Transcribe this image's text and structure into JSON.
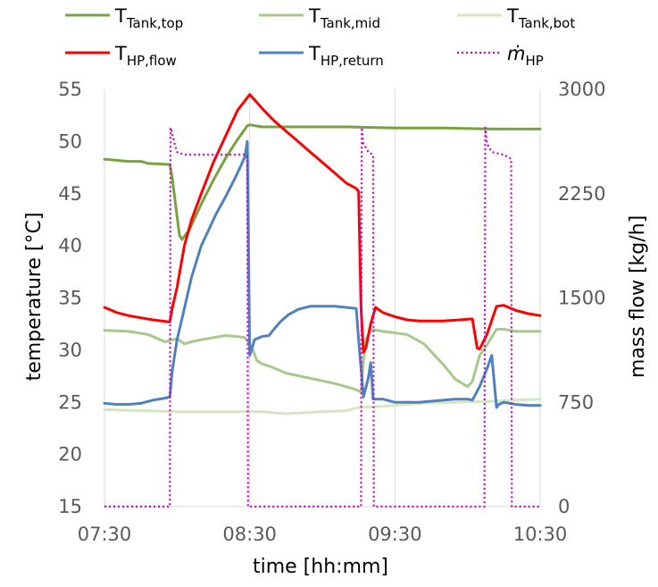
{
  "chart_data": {
    "type": "line",
    "x_unit": "minutes since 07:30",
    "xlabel": "time [hh:mm]",
    "ylabel_left": "temperature [°C]",
    "ylabel_right": "mass flow [kg/h]",
    "ylim_left": [
      15,
      55
    ],
    "ylim_right": [
      0,
      3000
    ],
    "xlim": [
      0,
      180
    ],
    "x_ticks": [
      {
        "value": 0,
        "label": "07:30"
      },
      {
        "value": 60,
        "label": "08:30"
      },
      {
        "value": 120,
        "label": "09:30"
      },
      {
        "value": 180,
        "label": "10:30"
      }
    ],
    "y_ticks_left": [
      {
        "value": 15,
        "label": "15"
      },
      {
        "value": 20,
        "label": "20"
      },
      {
        "value": 25,
        "label": "25"
      },
      {
        "value": 30,
        "label": "30"
      },
      {
        "value": 35,
        "label": "35"
      },
      {
        "value": 40,
        "label": "40"
      },
      {
        "value": 45,
        "label": "45"
      },
      {
        "value": 50,
        "label": "50"
      },
      {
        "value": 55,
        "label": "55"
      }
    ],
    "y_ticks_right": [
      {
        "value": 0,
        "label": "0"
      },
      {
        "value": 750,
        "label": "750"
      },
      {
        "value": 1500,
        "label": "1500"
      },
      {
        "value": 2250,
        "label": "2250"
      },
      {
        "value": 3000,
        "label": "3000"
      }
    ],
    "grid": "vertical",
    "legend_position": "top",
    "series": [
      {
        "name_main": "T",
        "name_sub": "Tank,top",
        "color": "#77a33f",
        "width": 3,
        "dash": "",
        "axis": "left",
        "points": [
          [
            0,
            48.3
          ],
          [
            10,
            48.1
          ],
          [
            15,
            48.1
          ],
          [
            18,
            47.9
          ],
          [
            27,
            47.8
          ],
          [
            28,
            46.5
          ],
          [
            31,
            41
          ],
          [
            32,
            40.6
          ],
          [
            35,
            41.5
          ],
          [
            40,
            44
          ],
          [
            45,
            46.3
          ],
          [
            50,
            48.4
          ],
          [
            55,
            50.2
          ],
          [
            59,
            51.5
          ],
          [
            60,
            51.6
          ],
          [
            65,
            51.4
          ],
          [
            80,
            51.4
          ],
          [
            100,
            51.4
          ],
          [
            120,
            51.3
          ],
          [
            140,
            51.3
          ],
          [
            160,
            51.2
          ],
          [
            170,
            51.2
          ],
          [
            180,
            51.2
          ]
        ]
      },
      {
        "name_main": "T",
        "name_sub": "Tank,mid",
        "color": "#a9c98a",
        "width": 3,
        "dash": "",
        "axis": "left",
        "points": [
          [
            0,
            31.9
          ],
          [
            10,
            31.8
          ],
          [
            18,
            31.5
          ],
          [
            25,
            30.8
          ],
          [
            30,
            31.1
          ],
          [
            33,
            30.6
          ],
          [
            36,
            30.8
          ],
          [
            40,
            31
          ],
          [
            45,
            31.2
          ],
          [
            50,
            31.4
          ],
          [
            55,
            31.3
          ],
          [
            58,
            31.2
          ],
          [
            61,
            30.2
          ],
          [
            63,
            29
          ],
          [
            65,
            28.7
          ],
          [
            70,
            28.3
          ],
          [
            75,
            27.8
          ],
          [
            85,
            27.3
          ],
          [
            95,
            26.8
          ],
          [
            103,
            26.3
          ],
          [
            106,
            26
          ],
          [
            107,
            29
          ],
          [
            108,
            31
          ],
          [
            110,
            32
          ],
          [
            115,
            31.8
          ],
          [
            125,
            31.5
          ],
          [
            132,
            30.6
          ],
          [
            140,
            28.6
          ],
          [
            145,
            27.2
          ],
          [
            150,
            26.5
          ],
          [
            152,
            27
          ],
          [
            155,
            29.5
          ],
          [
            158,
            30.5
          ],
          [
            162,
            32
          ],
          [
            165,
            32
          ],
          [
            170,
            31.8
          ],
          [
            180,
            31.8
          ]
        ]
      },
      {
        "name_main": "T",
        "name_sub": "Tank,bot",
        "color": "#d5e6c1",
        "width": 3,
        "dash": "",
        "axis": "left",
        "points": [
          [
            0,
            24.3
          ],
          [
            15,
            24.2
          ],
          [
            30,
            24.1
          ],
          [
            45,
            24.1
          ],
          [
            60,
            24.1
          ],
          [
            65,
            24.1
          ],
          [
            75,
            23.9
          ],
          [
            90,
            24.1
          ],
          [
            100,
            24.2
          ],
          [
            105,
            24.5
          ],
          [
            115,
            24.6
          ],
          [
            130,
            24.9
          ],
          [
            145,
            25
          ],
          [
            160,
            25.1
          ],
          [
            170,
            25.2
          ],
          [
            180,
            25.3
          ]
        ]
      },
      {
        "name_main": "T",
        "name_sub": "HP,flow",
        "color": "#ff0000",
        "width": 3,
        "dash": "",
        "axis": "left",
        "points": [
          [
            0,
            34.1
          ],
          [
            5,
            33.6
          ],
          [
            10,
            33.3
          ],
          [
            15,
            33.1
          ],
          [
            20,
            32.9
          ],
          [
            27,
            32.7
          ],
          [
            28,
            34
          ],
          [
            30,
            36
          ],
          [
            33,
            40
          ],
          [
            36,
            42.5
          ],
          [
            40,
            45
          ],
          [
            45,
            48
          ],
          [
            50,
            50.5
          ],
          [
            55,
            53
          ],
          [
            59,
            54.2
          ],
          [
            60,
            54.5
          ],
          [
            62,
            54
          ],
          [
            65,
            53.2
          ],
          [
            70,
            52
          ],
          [
            75,
            51
          ],
          [
            80,
            50
          ],
          [
            85,
            49
          ],
          [
            90,
            48
          ],
          [
            95,
            47
          ],
          [
            100,
            46
          ],
          [
            104,
            45.5
          ],
          [
            105,
            45.2
          ],
          [
            106,
            34
          ],
          [
            107,
            29.8
          ],
          [
            108,
            30.2
          ],
          [
            110,
            32.5
          ],
          [
            112,
            34.1
          ],
          [
            115,
            33.6
          ],
          [
            120,
            33.2
          ],
          [
            125,
            32.9
          ],
          [
            130,
            32.8
          ],
          [
            140,
            32.8
          ],
          [
            147,
            32.9
          ],
          [
            152,
            33
          ],
          [
            154,
            30.2
          ],
          [
            155,
            30.1
          ],
          [
            158,
            31.5
          ],
          [
            162,
            34.2
          ],
          [
            165,
            34.3
          ],
          [
            170,
            33.8
          ],
          [
            175,
            33.5
          ],
          [
            180,
            33.3
          ]
        ]
      },
      {
        "name_main": "T",
        "name_sub": "HP,return",
        "color": "#4f81bd",
        "width": 3,
        "dash": "",
        "axis": "left",
        "points": [
          [
            0,
            24.9
          ],
          [
            5,
            24.8
          ],
          [
            10,
            24.8
          ],
          [
            15,
            24.9
          ],
          [
            20,
            25.2
          ],
          [
            25,
            25.4
          ],
          [
            27,
            25.5
          ],
          [
            28,
            28
          ],
          [
            30,
            31
          ],
          [
            32,
            33
          ],
          [
            34,
            35
          ],
          [
            36,
            37
          ],
          [
            38,
            38.5
          ],
          [
            40,
            40
          ],
          [
            43,
            41.5
          ],
          [
            46,
            43
          ],
          [
            50,
            44.7
          ],
          [
            54,
            46.5
          ],
          [
            58,
            48.5
          ],
          [
            59,
            50
          ],
          [
            60,
            29.5
          ],
          [
            62,
            31
          ],
          [
            65,
            31.3
          ],
          [
            68,
            31.4
          ],
          [
            70,
            32
          ],
          [
            73,
            32.8
          ],
          [
            76,
            33.4
          ],
          [
            80,
            33.9
          ],
          [
            85,
            34.2
          ],
          [
            90,
            34.2
          ],
          [
            95,
            34.2
          ],
          [
            104,
            34
          ],
          [
            105,
            31
          ],
          [
            107,
            25.5
          ],
          [
            109,
            27.3
          ],
          [
            110,
            28.8
          ],
          [
            111,
            25.3
          ],
          [
            115,
            25.3
          ],
          [
            120,
            25
          ],
          [
            130,
            25
          ],
          [
            140,
            25.2
          ],
          [
            145,
            25.3
          ],
          [
            150,
            25.3
          ],
          [
            152,
            25.2
          ],
          [
            155,
            26.5
          ],
          [
            158,
            28.2
          ],
          [
            160,
            29.5
          ],
          [
            162,
            24.5
          ],
          [
            163,
            24.8
          ],
          [
            165,
            25
          ],
          [
            170,
            24.8
          ],
          [
            175,
            24.7
          ],
          [
            180,
            24.7
          ]
        ]
      },
      {
        "name_main": "ṁ",
        "name_sub": "HP",
        "color": "#cc00cc",
        "width": 2.2,
        "dash": "2,3",
        "axis": "right",
        "points": [
          [
            0,
            0
          ],
          [
            27,
            0
          ],
          [
            27.3,
            2725
          ],
          [
            29,
            2610
          ],
          [
            30,
            2550
          ],
          [
            33,
            2530
          ],
          [
            40,
            2530
          ],
          [
            50,
            2530
          ],
          [
            58,
            2530
          ],
          [
            59,
            2520
          ],
          [
            59.3,
            0
          ],
          [
            106,
            0
          ],
          [
            106.3,
            2725
          ],
          [
            107,
            2610
          ],
          [
            109,
            2550
          ],
          [
            111,
            2530
          ],
          [
            111.3,
            0
          ],
          [
            157,
            0
          ],
          [
            157.3,
            2725
          ],
          [
            158,
            2610
          ],
          [
            160,
            2550
          ],
          [
            165,
            2530
          ],
          [
            168,
            2500
          ],
          [
            168.3,
            0
          ],
          [
            180,
            0
          ]
        ]
      }
    ]
  }
}
